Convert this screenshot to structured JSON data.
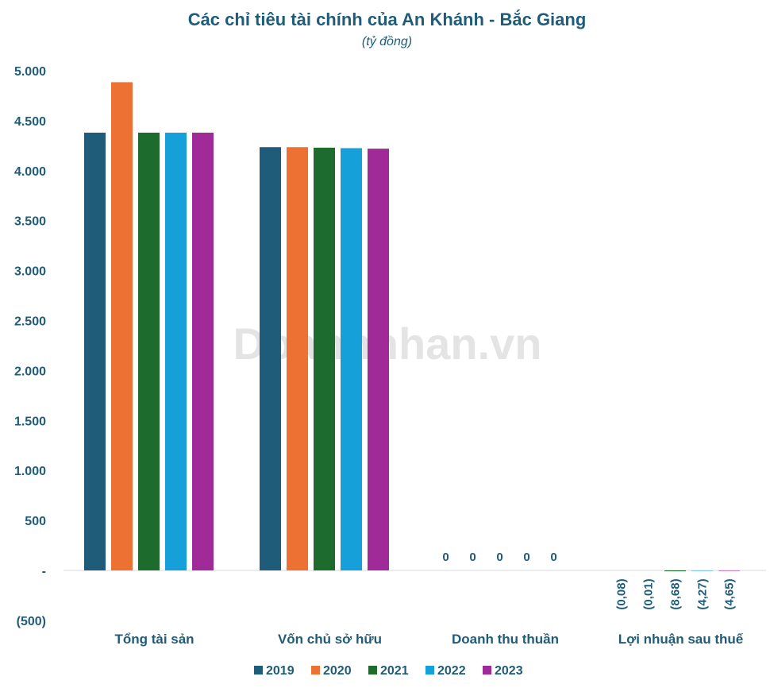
{
  "chart_data": {
    "type": "bar",
    "title": "Các chỉ tiêu tài chính của An Khánh - Bắc Giang",
    "subtitle": "(tỷ đồng)",
    "categories": [
      "Tổng tài sản",
      "Vốn chủ sở hữu",
      "Doanh thu thuần",
      "Lợi nhuận sau thuế"
    ],
    "series": [
      {
        "name": "2019",
        "color": "#1f5c79",
        "values": [
          4380,
          4235,
          0,
          -0.08
        ],
        "labels": [
          "",
          "",
          "0",
          "(0,08)"
        ]
      },
      {
        "name": "2020",
        "color": "#ed7133",
        "values": [
          4885,
          4235,
          0,
          -0.01
        ],
        "labels": [
          "",
          "",
          "0",
          "(0,01)"
        ]
      },
      {
        "name": "2021",
        "color": "#1e6b2e",
        "values": [
          4380,
          4230,
          0,
          -8.68
        ],
        "labels": [
          "",
          "",
          "0",
          "(8,68)"
        ]
      },
      {
        "name": "2022",
        "color": "#16a0d9",
        "values": [
          4380,
          4225,
          0,
          -4.27
        ],
        "labels": [
          "",
          "",
          "0",
          "(4,27)"
        ]
      },
      {
        "name": "2023",
        "color": "#a02a97",
        "values": [
          4380,
          4220,
          0,
          -4.65
        ],
        "labels": [
          "",
          "",
          "0",
          "(4,65)"
        ]
      }
    ],
    "ylim": [
      -500,
      5000
    ],
    "yticks": [
      {
        "value": 5000,
        "label": "5.000"
      },
      {
        "value": 4500,
        "label": "4.500"
      },
      {
        "value": 4000,
        "label": "4.000"
      },
      {
        "value": 3500,
        "label": "3.500"
      },
      {
        "value": 3000,
        "label": "3.000"
      },
      {
        "value": 2500,
        "label": "2.500"
      },
      {
        "value": 2000,
        "label": "2.000"
      },
      {
        "value": 1500,
        "label": "1.500"
      },
      {
        "value": 1000,
        "label": "1.000"
      },
      {
        "value": 500,
        "label": "500"
      },
      {
        "value": 0,
        "label": "-"
      },
      {
        "value": -500,
        "label": "(500)"
      }
    ],
    "grid": false,
    "legend_position": "bottom"
  },
  "watermark": "Doanhnhan.vn"
}
